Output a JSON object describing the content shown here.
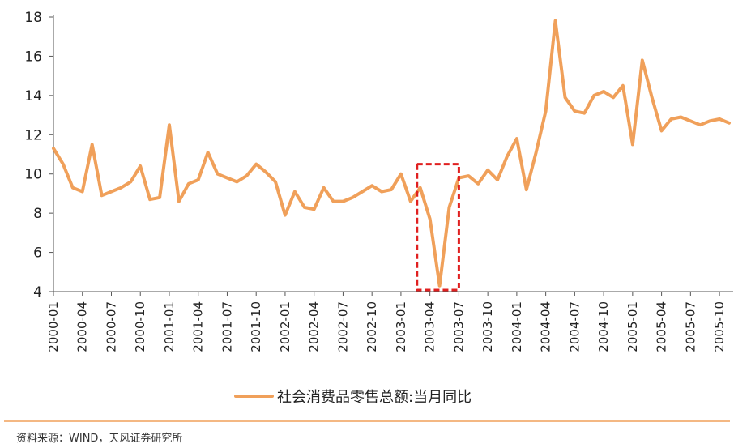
{
  "chart_data": {
    "type": "line",
    "title": "",
    "xlabel": "",
    "ylabel": "",
    "ylim": [
      4,
      18
    ],
    "yticks": [
      4,
      6,
      8,
      10,
      12,
      14,
      16,
      18
    ],
    "x_tick_labels": [
      "2000-01",
      "2000-04",
      "2000-07",
      "2000-10",
      "2001-01",
      "2001-04",
      "2001-07",
      "2001-10",
      "2002-01",
      "2002-04",
      "2002-07",
      "2002-10",
      "2003-01",
      "2003-04",
      "2003-07",
      "2003-10",
      "2004-01",
      "2004-04",
      "2004-07",
      "2004-10",
      "2005-01",
      "2005-04",
      "2005-07",
      "2005-10"
    ],
    "x": [
      "2000-01",
      "2000-02",
      "2000-03",
      "2000-04",
      "2000-05",
      "2000-06",
      "2000-07",
      "2000-08",
      "2000-09",
      "2000-10",
      "2000-11",
      "2000-12",
      "2001-01",
      "2001-02",
      "2001-03",
      "2001-04",
      "2001-05",
      "2001-06",
      "2001-07",
      "2001-08",
      "2001-09",
      "2001-10",
      "2001-11",
      "2001-12",
      "2002-01",
      "2002-02",
      "2002-03",
      "2002-04",
      "2002-05",
      "2002-06",
      "2002-07",
      "2002-08",
      "2002-09",
      "2002-10",
      "2002-11",
      "2002-12",
      "2003-01",
      "2003-02",
      "2003-03",
      "2003-04",
      "2003-05",
      "2003-06",
      "2003-07",
      "2003-08",
      "2003-09",
      "2003-10",
      "2003-11",
      "2003-12",
      "2004-01",
      "2004-02",
      "2004-03",
      "2004-04",
      "2004-05",
      "2004-06",
      "2004-07",
      "2004-08",
      "2004-09",
      "2004-10",
      "2004-11",
      "2004-12",
      "2005-01",
      "2005-02",
      "2005-03",
      "2005-04",
      "2005-05",
      "2005-06",
      "2005-07",
      "2005-08",
      "2005-09",
      "2005-10",
      "2005-11"
    ],
    "series": [
      {
        "name": "社会消费品零售总额:当月同比",
        "color": "#F0A05A",
        "values": [
          11.3,
          10.5,
          9.3,
          9.1,
          11.5,
          8.9,
          9.1,
          9.3,
          9.6,
          10.4,
          8.7,
          8.8,
          12.5,
          8.6,
          9.5,
          9.7,
          11.1,
          10.0,
          9.8,
          9.6,
          9.9,
          10.5,
          10.1,
          9.6,
          7.9,
          9.1,
          8.3,
          8.2,
          9.3,
          8.6,
          8.6,
          8.8,
          9.1,
          9.4,
          9.1,
          9.2,
          10.0,
          8.6,
          9.3,
          7.7,
          4.3,
          8.3,
          9.8,
          9.9,
          9.5,
          10.2,
          9.7,
          10.9,
          11.8,
          9.2,
          11.1,
          13.2,
          17.8,
          13.9,
          13.2,
          13.1,
          14.0,
          14.2,
          13.9,
          14.5,
          11.5,
          15.8,
          13.9,
          12.2,
          12.8,
          12.9,
          12.7,
          12.5,
          12.7,
          12.8,
          12.6
        ]
      }
    ],
    "highlight_box": {
      "x_start": "2003-03",
      "x_end": "2003-07",
      "y_start": 4,
      "y_end": 10.5,
      "color": "#E02020"
    },
    "grid": false,
    "legend_position": "bottom"
  },
  "source": {
    "text": "资料来源：WIND，天风证券研究所",
    "line_color": "#F0A05A"
  }
}
